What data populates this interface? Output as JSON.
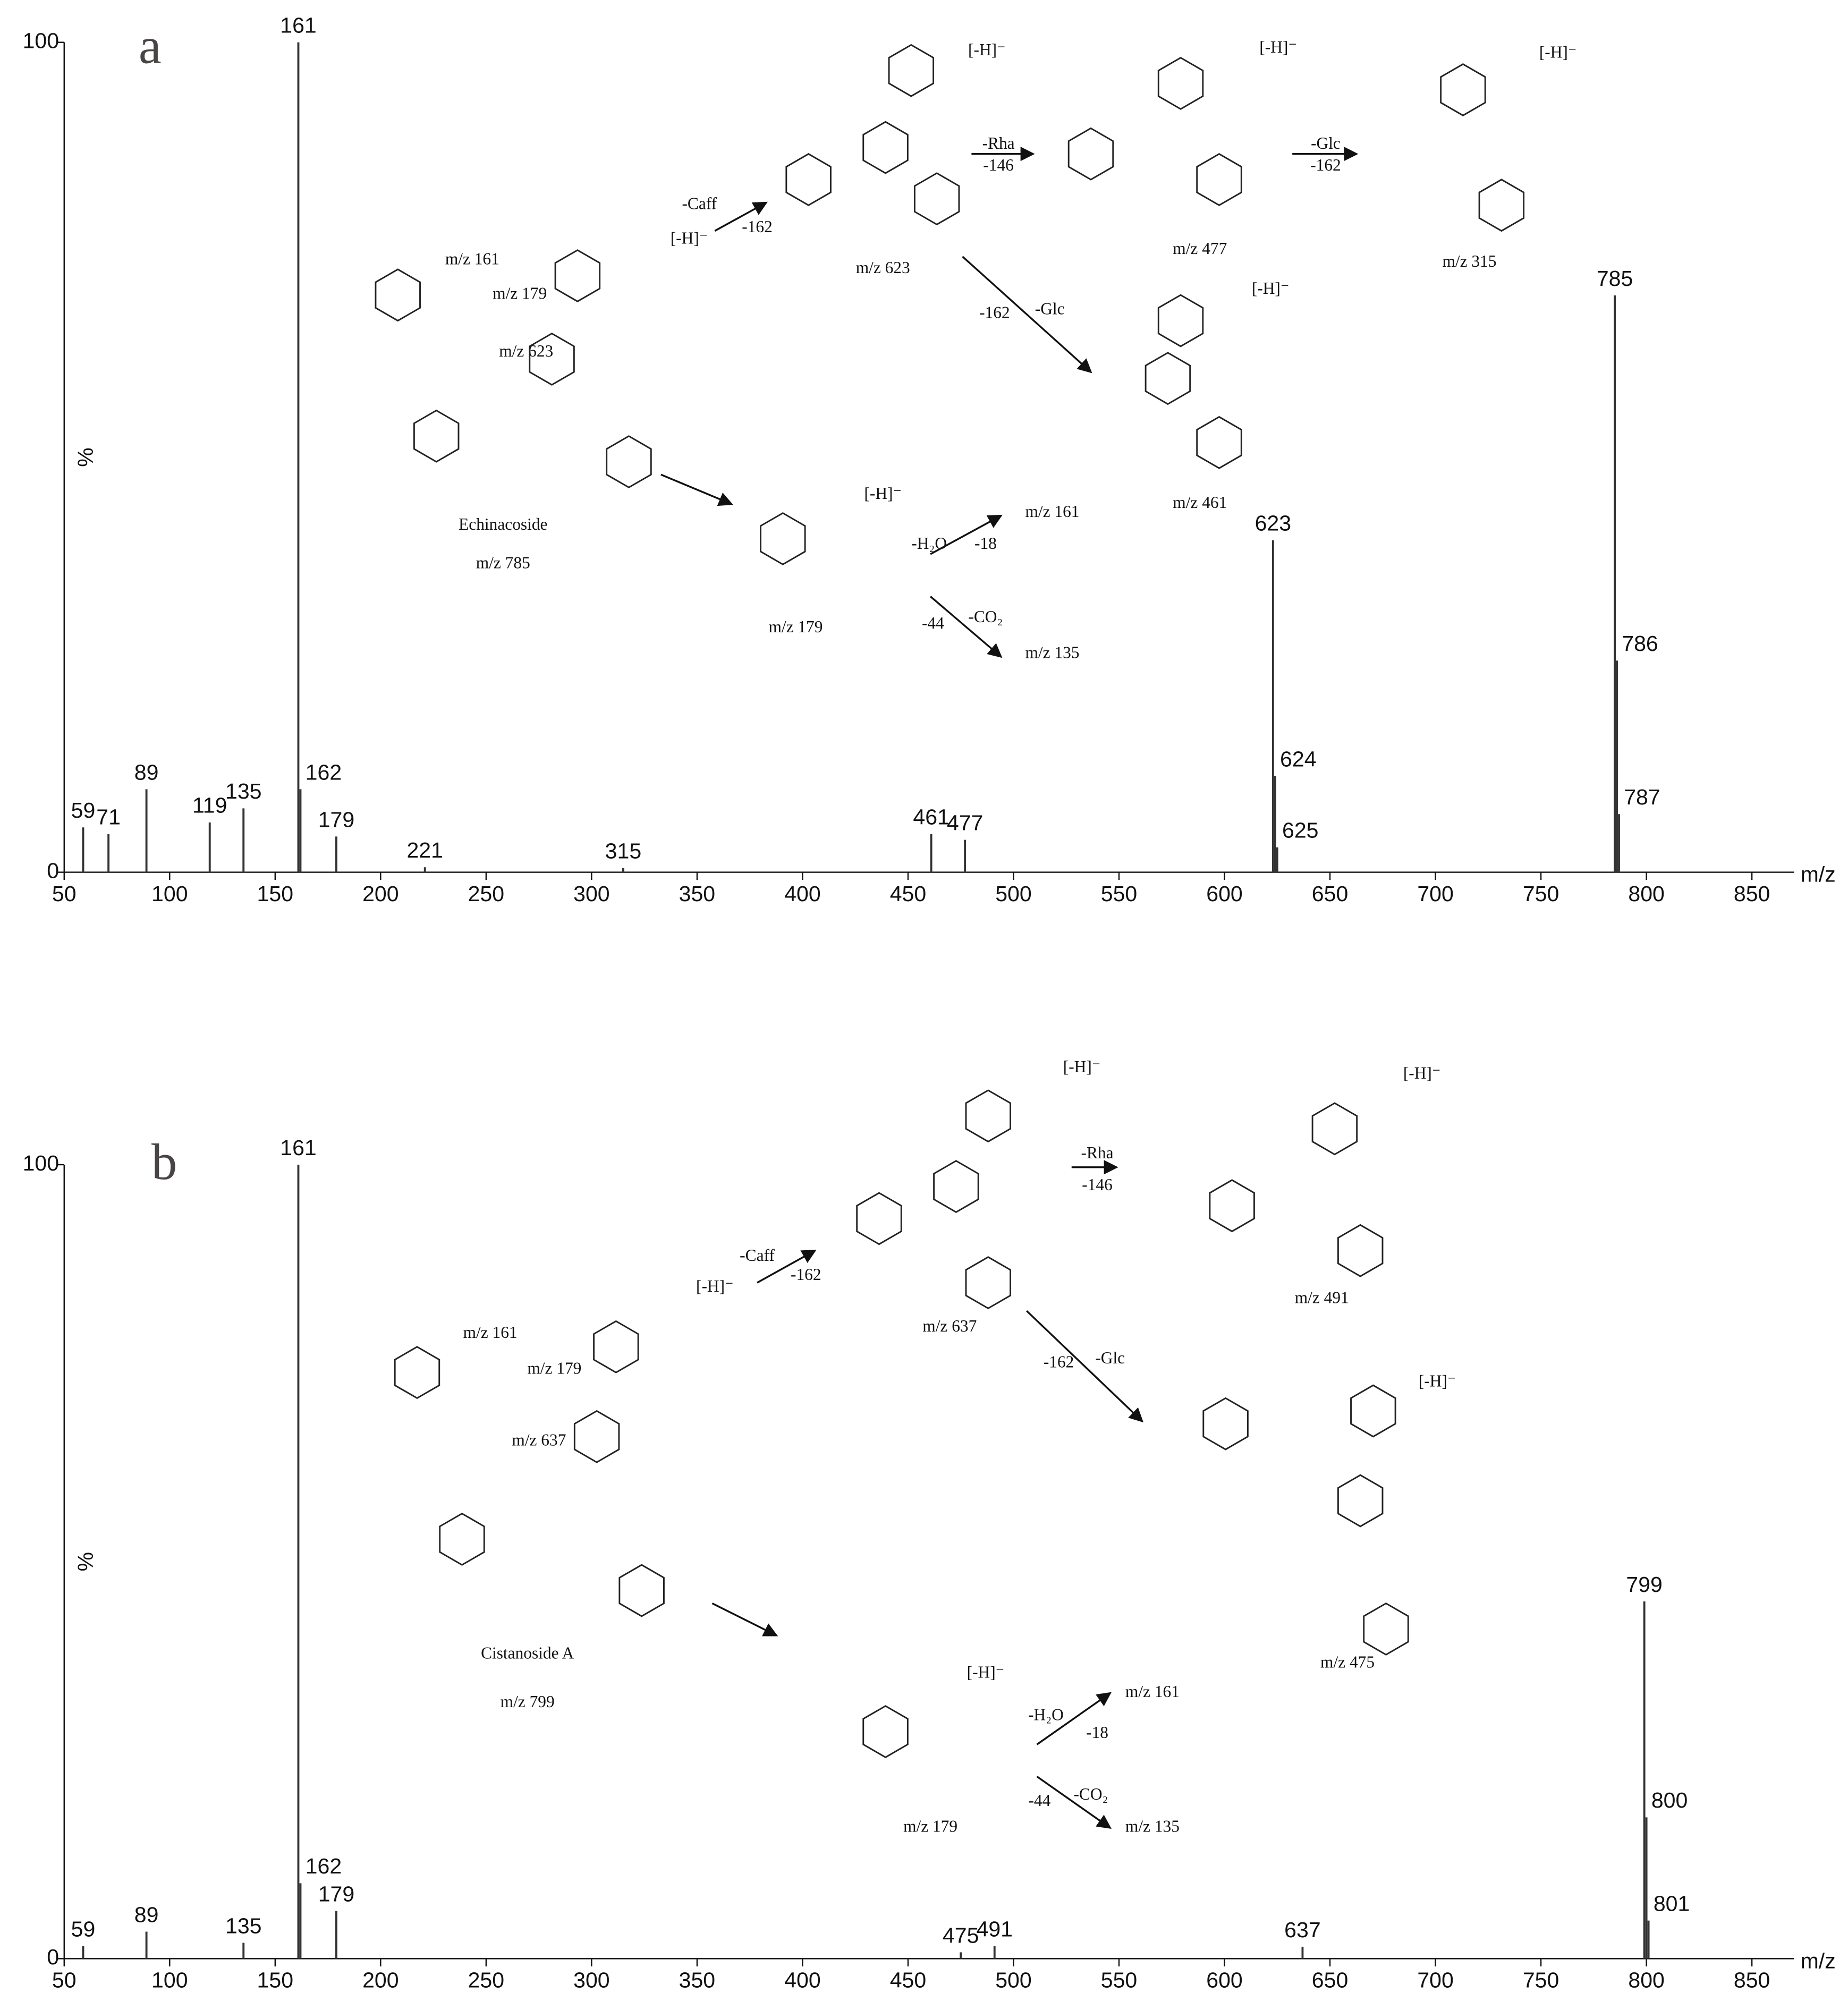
{
  "chart_data": [
    {
      "type": "bar",
      "title": "a",
      "xlabel": "m/z",
      "ylabel": "%",
      "color": "#333333",
      "x": [
        59,
        71,
        89,
        119,
        135,
        161,
        162,
        179,
        221,
        315,
        461,
        477,
        623,
        624,
        625,
        785,
        786,
        787
      ],
      "values": [
        5.4,
        4.6,
        10,
        6,
        7.7,
        100,
        10,
        4.3,
        0.6,
        0.5,
        4.6,
        3.9,
        40,
        11.6,
        3,
        69.5,
        25.5,
        7
      ],
      "xlim": [
        50,
        870
      ],
      "xticks": [
        50,
        100,
        150,
        200,
        250,
        300,
        350,
        400,
        450,
        500,
        550,
        600,
        650,
        700,
        750,
        800,
        850
      ],
      "ylim": [
        0,
        100
      ],
      "yticks": [
        0,
        100
      ],
      "annotations": [
        "Echinacoside",
        "m/z 785",
        "m/z 623",
        "m/z 477",
        "m/z 315",
        "m/z 461",
        "m/z 179",
        "m/z 161",
        "m/z 135",
        "-Caff",
        "-162",
        "-Rha",
        "-146",
        "-Glc",
        "-162",
        "-162",
        "-Glc",
        "-H₂O",
        "-18",
        "-44",
        "-CO₂",
        "m/z 161",
        "m/z 179",
        "m/z 623",
        "[-H]⁻",
        "[-H]⁻",
        "[-H]⁻",
        "[-H]⁻",
        "[-H]⁻",
        "[-H]⁻"
      ]
    },
    {
      "type": "bar",
      "title": "b",
      "xlabel": "m/z",
      "ylabel": "%",
      "color": "#333333",
      "x": [
        59,
        89,
        135,
        161,
        162,
        179,
        475,
        491,
        637,
        799,
        800,
        801
      ],
      "values": [
        1.6,
        3.4,
        2,
        100,
        9.5,
        6,
        0.8,
        1.6,
        1.5,
        45,
        17.8,
        4.8
      ],
      "xlim": [
        50,
        870
      ],
      "xticks": [
        50,
        100,
        150,
        200,
        250,
        300,
        350,
        400,
        450,
        500,
        550,
        600,
        650,
        700,
        750,
        800,
        850
      ],
      "ylim": [
        0,
        100
      ],
      "yticks": [
        0,
        100
      ],
      "annotations": [
        "Cistanoside A",
        "m/z 799",
        "m/z 637",
        "m/z 491",
        "m/z 475",
        "m/z 179",
        "m/z 161",
        "m/z 135",
        "-Caff",
        "-162",
        "-Rha",
        "-146",
        "-162",
        "-Glc",
        "-H₂O",
        "-18",
        "-44",
        "-CO₂",
        "m/z 161",
        "m/z 179",
        "m/z 637",
        "[-H]⁻",
        "[-H]⁻",
        "[-H]⁻",
        "[-H]⁻",
        "[-H]⁻"
      ]
    }
  ]
}
